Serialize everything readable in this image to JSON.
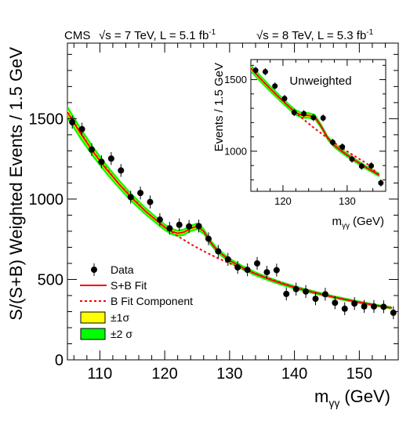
{
  "header": {
    "experiment": "CMS",
    "run1": "√s = 7 TeV, L = 5.1 fb",
    "run2": "√s = 8 TeV, L = 5.3 fb",
    "sup": "-1"
  },
  "colors": {
    "fit": "#ff0000",
    "band1": "#ffff00",
    "band2": "#00ff00",
    "points": "#000000"
  },
  "legend": {
    "placement": "bottom-left",
    "items": [
      {
        "label": "Data",
        "kind": "marker"
      },
      {
        "label": "S+B Fit",
        "kind": "solid-line"
      },
      {
        "label": "B Fit Component",
        "kind": "dashed-line"
      },
      {
        "label": "±1σ",
        "kind": "yellow-box"
      },
      {
        "label": "±2 σ",
        "kind": "green-box"
      }
    ]
  },
  "chart_data": [
    {
      "type": "scatter",
      "xlabel": "m",
      "xlabel_sub": "γγ",
      "xlabel_unit": "(GeV)",
      "ylabel": "S/(S+B) Weighted Events / 1.5 GeV",
      "xlim": [
        105,
        156
      ],
      "ylim": [
        0,
        1970
      ],
      "xticks": [
        110,
        120,
        130,
        140,
        150
      ],
      "yticks": [
        0,
        500,
        1000,
        1500
      ],
      "grid": false,
      "series": [
        {
          "name": "Data",
          "x": [
            105.75,
            107.25,
            108.75,
            110.25,
            111.75,
            113.25,
            114.75,
            116.25,
            117.75,
            119.25,
            120.75,
            122.25,
            123.75,
            125.25,
            126.75,
            128.25,
            129.75,
            131.25,
            132.75,
            134.25,
            135.75,
            137.25,
            138.75,
            140.25,
            141.75,
            143.25,
            144.75,
            146.25,
            147.75,
            149.25,
            150.75,
            152.25,
            153.75,
            155.25
          ],
          "y": [
            1478,
            1435,
            1308,
            1232,
            1252,
            1178,
            1012,
            1038,
            982,
            872,
            818,
            840,
            830,
            832,
            753,
            675,
            625,
            575,
            560,
            600,
            545,
            558,
            410,
            440,
            425,
            380,
            408,
            355,
            318,
            350,
            332,
            332,
            330,
            293
          ],
          "yerr": 40
        },
        {
          "name": "S+B Fit",
          "x": [
            105,
            107,
            109,
            111,
            113,
            115,
            117,
            119,
            120,
            121,
            122,
            123,
            124,
            125,
            126,
            127,
            128,
            130,
            132,
            134,
            136,
            138,
            140,
            142,
            144,
            146,
            148,
            150,
            152,
            154,
            155
          ],
          "y": [
            1540,
            1410,
            1292,
            1186,
            1091,
            1004,
            926,
            858,
            825,
            800,
            787,
            795,
            818,
            830,
            800,
            735,
            684,
            618,
            573,
            535,
            503,
            475,
            451,
            429,
            410,
            391,
            374,
            358,
            343,
            329,
            323
          ]
        },
        {
          "name": "B Fit Component",
          "x": [
            105,
            109,
            113,
            117,
            120,
            122,
            124,
            126,
            128,
            130,
            134,
            140,
            146,
            150,
            155
          ],
          "y": [
            1540,
            1292,
            1091,
            926,
            825,
            770,
            720,
            676,
            636,
            600,
            535,
            451,
            391,
            358,
            323
          ]
        }
      ]
    },
    {
      "type": "scatter",
      "title": "Unweighted",
      "xlabel": "m",
      "xlabel_sub": "γγ",
      "xlabel_unit": "(GeV)",
      "ylabel": "Events / 1.5 GeV",
      "xlim": [
        115,
        136
      ],
      "ylim": [
        720,
        1640
      ],
      "xticks": [
        120,
        130
      ],
      "yticks": [
        1000,
        1500
      ],
      "series": [
        {
          "name": "Data",
          "x": [
            115.75,
            117.25,
            118.75,
            120.25,
            121.75,
            123.25,
            124.75,
            126.25,
            127.75,
            129.25,
            130.75,
            132.25,
            133.75,
            135.25
          ],
          "y": [
            1565,
            1555,
            1455,
            1368,
            1270,
            1262,
            1235,
            1232,
            1062,
            1030,
            945,
            895,
            898,
            778
          ],
          "yerr": 25
        },
        {
          "name": "S+B Fit",
          "x": [
            115,
            116,
            117,
            118,
            119,
            120,
            121,
            122,
            123,
            124,
            125,
            126,
            127,
            128,
            129,
            130,
            131,
            132,
            133,
            134,
            135
          ],
          "y": [
            1580,
            1530,
            1483,
            1437,
            1393,
            1350,
            1308,
            1270,
            1250,
            1250,
            1238,
            1170,
            1090,
            1040,
            1005,
            972,
            942,
            913,
            885,
            859,
            833
          ]
        },
        {
          "name": "B Fit Component",
          "x": [
            115,
            117,
            119,
            121,
            123,
            125,
            127,
            129,
            131,
            133,
            135
          ],
          "y": [
            1580,
            1483,
            1393,
            1308,
            1230,
            1157,
            1090,
            1028,
            970,
            916,
            833
          ]
        }
      ]
    }
  ]
}
